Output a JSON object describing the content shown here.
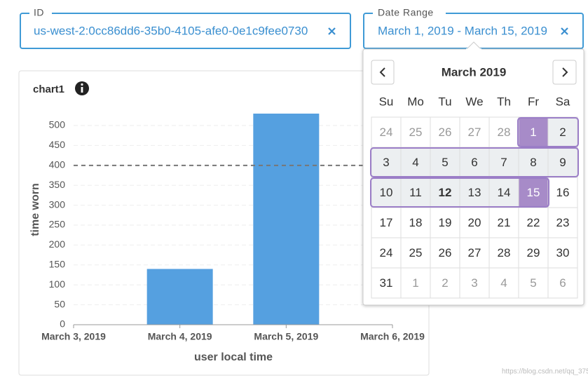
{
  "id_field": {
    "label": "ID",
    "value": "us-west-2:0cc86dd6-35b0-4105-afe0-0e1c9fee0730"
  },
  "date_field": {
    "label": "Date Range",
    "value": "March 1, 2019 - March 15, 2019"
  },
  "calendar": {
    "month": "March 2019",
    "weekdays": [
      "Su",
      "Mo",
      "Tu",
      "We",
      "Th",
      "Fr",
      "Sa"
    ],
    "weeks": [
      [
        24,
        25,
        26,
        27,
        28,
        1,
        2
      ],
      [
        3,
        4,
        5,
        6,
        7,
        8,
        9
      ],
      [
        10,
        11,
        12,
        13,
        14,
        15,
        16
      ],
      [
        17,
        18,
        19,
        20,
        21,
        22,
        23
      ],
      [
        24,
        25,
        26,
        27,
        28,
        29,
        30
      ],
      [
        31,
        1,
        2,
        3,
        4,
        5,
        6
      ]
    ],
    "selected": {
      "start": 1,
      "end": 15
    },
    "today": 12
  },
  "chart": {
    "type": "bar",
    "title": "chart1",
    "xlabel": "user local time",
    "ylabel": "time worn",
    "categories": [
      "March 3, 2019",
      "March 4, 2019",
      "March 5, 2019",
      "March 6, 2019"
    ],
    "values": [
      null,
      140,
      530,
      null
    ],
    "color": "#55a0e0",
    "ylim": [
      0,
      530
    ],
    "yticks": [
      0,
      50,
      100,
      150,
      200,
      250,
      300,
      350,
      400,
      450,
      500
    ],
    "threshold": 400,
    "grid": true
  },
  "watermark": "https://blog.csdn.net/qq_375"
}
